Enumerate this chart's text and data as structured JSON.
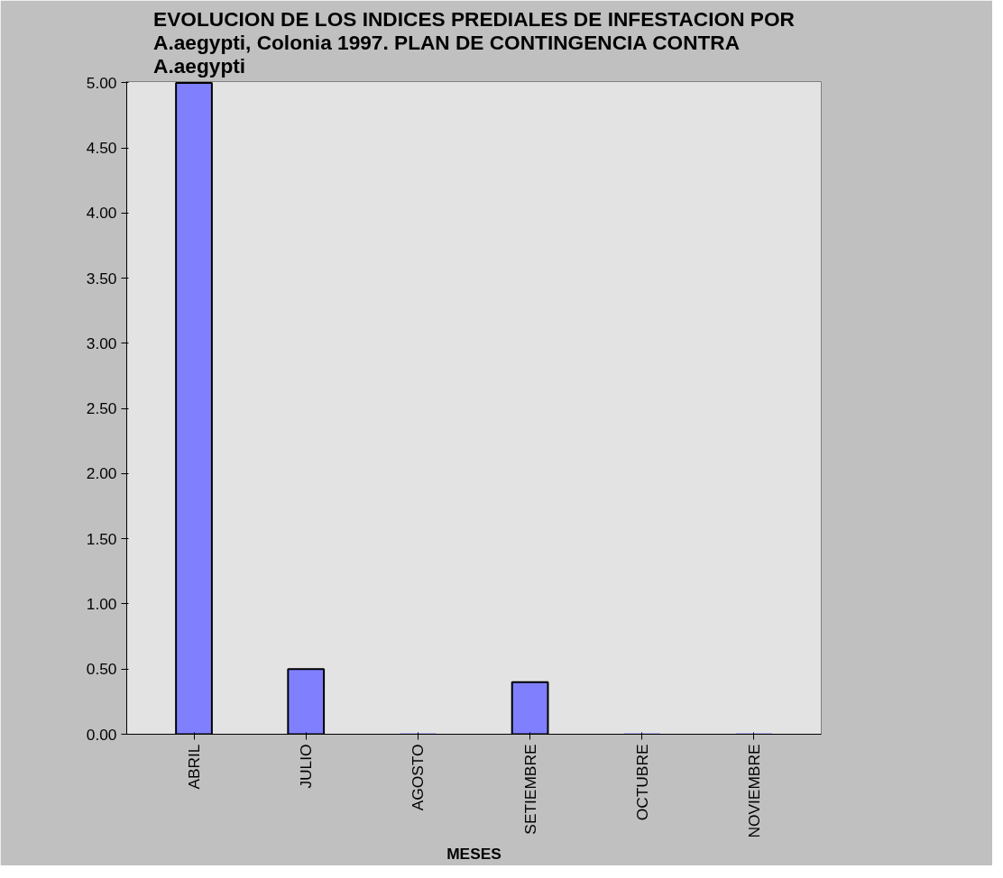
{
  "chart_data": {
    "type": "bar",
    "title": "EVOLUCION DE LOS INDICES PREDIALES DE INFESTACION POR\nA.aegypti, Colonia 1997. PLAN DE CONTINGENCIA CONTRA\nA.aegypti",
    "xlabel": "MESES",
    "categories": [
      "ABRIL",
      "JULIO",
      "AGOSTO",
      "SETIEMBRE",
      "OCTUBRE",
      "NOVIEMBRE"
    ],
    "values": [
      5.0,
      0.5,
      0,
      0.4,
      0,
      0
    ],
    "color": "#8080ff",
    "ylim": [
      0,
      5
    ],
    "yticks": [
      {
        "value": 0,
        "label": "0.00"
      },
      {
        "value": 0.5,
        "label": "0.50"
      },
      {
        "value": 1,
        "label": "1.00"
      },
      {
        "value": 1.5,
        "label": "1.50"
      },
      {
        "value": 2,
        "label": "2.00"
      },
      {
        "value": 2.5,
        "label": "2.50"
      },
      {
        "value": 3,
        "label": "3.00"
      },
      {
        "value": 3.5,
        "label": "3.50"
      },
      {
        "value": 4,
        "label": "4.00"
      },
      {
        "value": 4.5,
        "label": "4.50"
      },
      {
        "value": 5,
        "label": "5.00"
      }
    ],
    "grid": false
  }
}
